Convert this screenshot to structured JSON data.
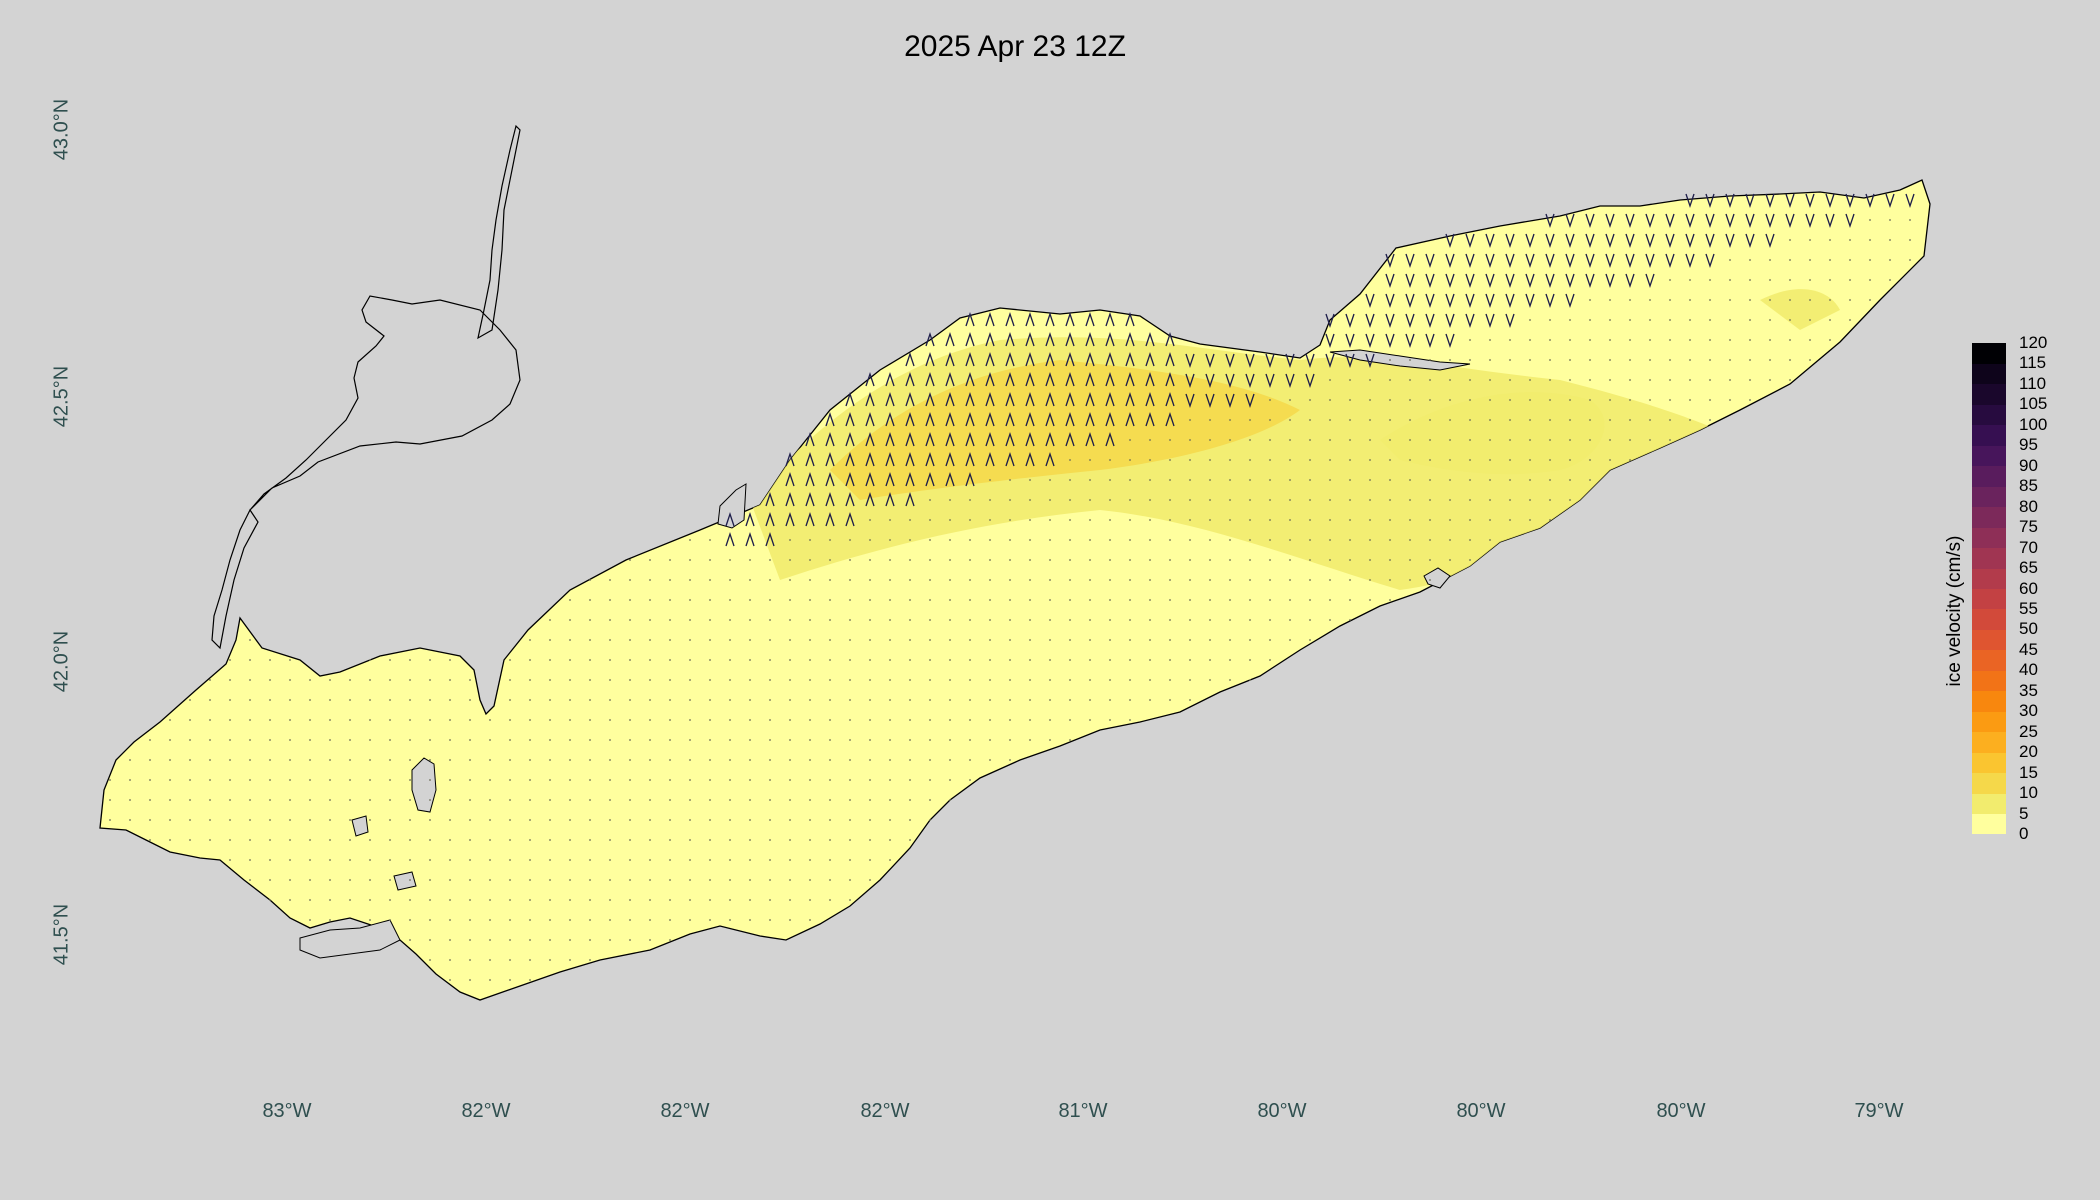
{
  "title": "2025 Apr 23 12Z",
  "background_color": "#d3d3d3",
  "lake_base_color": "#ffff9e",
  "lon_labels": [
    "83°W",
    "82°W",
    "82°W",
    "82°W",
    "81°W",
    "80°W",
    "80°W",
    "80°W",
    "79°W"
  ],
  "lat_labels": [
    "43.0°N",
    "42.5°N",
    "42.0°N",
    "41.5°N"
  ],
  "colorbar": {
    "label": "ice velocity (cm/s)",
    "ticks": [
      "120",
      "115",
      "110",
      "105",
      "100",
      "95",
      "90",
      "85",
      "80",
      "75",
      "70",
      "65",
      "60",
      "55",
      "50",
      "45",
      "40",
      "35",
      "30",
      "25",
      "20",
      "15",
      "10",
      "5",
      "0"
    ],
    "colors": [
      "#ffff9e",
      "#f2ec6e",
      "#f5d84a",
      "#fac530",
      "#fcaf1f",
      "#fb9b12",
      "#f8870e",
      "#f27317",
      "#ea6424",
      "#df5530",
      "#d24a3a",
      "#c34143",
      "#b23b4b",
      "#a03552",
      "#8e2f57",
      "#7c295a",
      "#6a235d",
      "#591c5d",
      "#47155b",
      "#360f51",
      "#270b3f",
      "#1a072c",
      "#0e041b",
      "#000004"
    ]
  },
  "arrow_color": "#1c1c4a"
}
